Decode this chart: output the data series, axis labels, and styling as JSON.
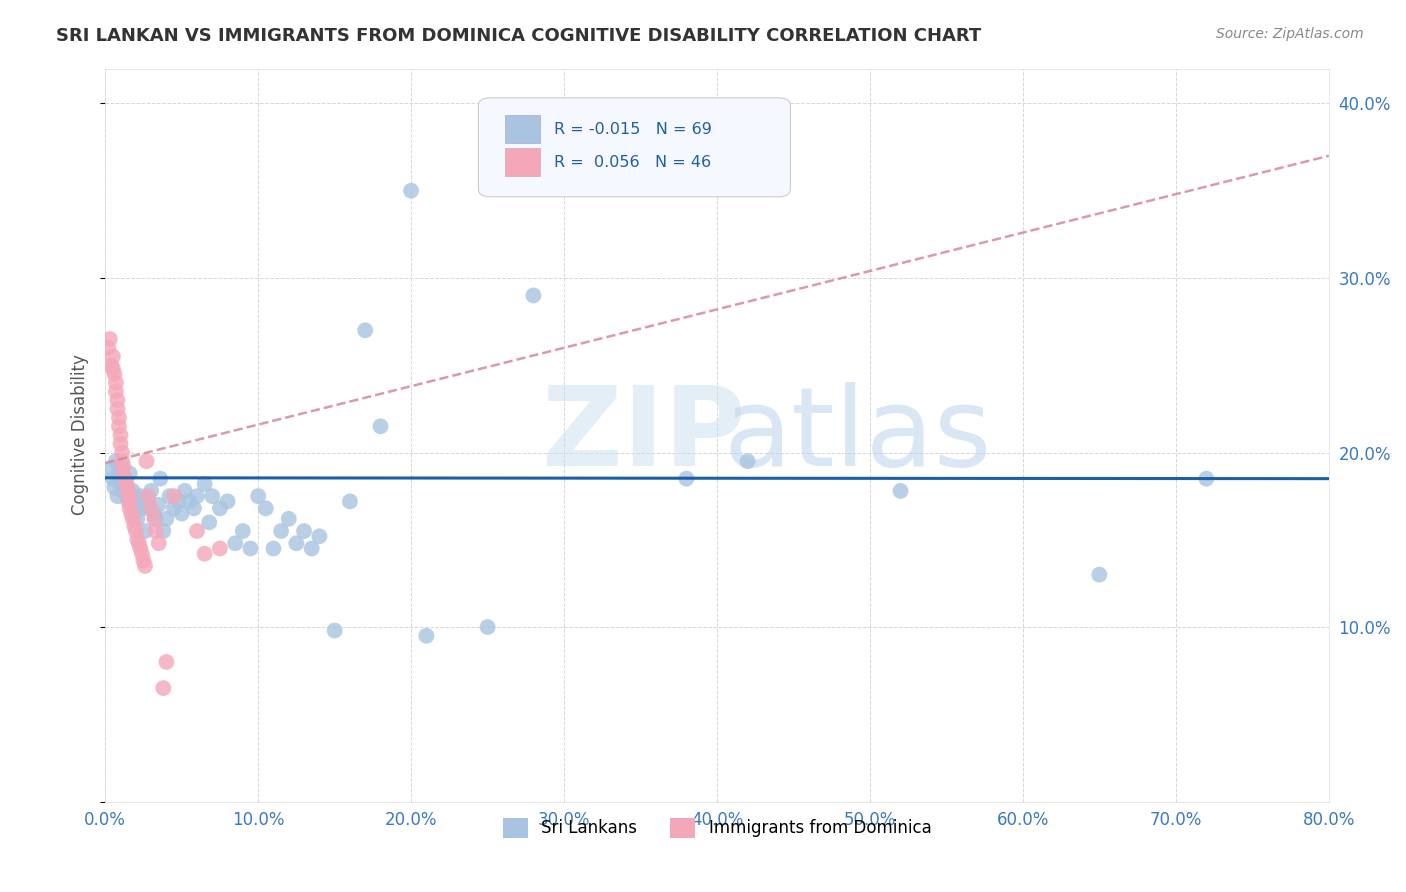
{
  "title": "SRI LANKAN VS IMMIGRANTS FROM DOMINICA COGNITIVE DISABILITY CORRELATION CHART",
  "source": "Source: ZipAtlas.com",
  "ylabel": "Cognitive Disability",
  "yticks": [
    0.0,
    0.1,
    0.2,
    0.3,
    0.4
  ],
  "ytick_labels": [
    "",
    "10.0%",
    "20.0%",
    "30.0%",
    "40.0%"
  ],
  "xticks": [
    0.0,
    0.1,
    0.2,
    0.3,
    0.4,
    0.5,
    0.6,
    0.7,
    0.8
  ],
  "xlim": [
    0.0,
    0.8
  ],
  "ylim": [
    0.0,
    0.42
  ],
  "legend_label1": "Sri Lankans",
  "legend_label2": "Immigrants from Dominica",
  "r1": "-0.015",
  "n1": "69",
  "r2": "0.056",
  "n2": "46",
  "color_blue": "#a8c4e0",
  "color_pink": "#f4a7b9",
  "line_blue": "#1a5fa8",
  "line_pink": "#d4889a",
  "background": "#ffffff",
  "grid_color": "#cccccc",
  "sri_lankans_x": [
    0.003,
    0.005,
    0.006,
    0.007,
    0.008,
    0.009,
    0.01,
    0.01,
    0.011,
    0.012,
    0.013,
    0.014,
    0.015,
    0.016,
    0.017,
    0.018,
    0.019,
    0.02,
    0.021,
    0.022,
    0.023,
    0.025,
    0.026,
    0.028,
    0.03,
    0.032,
    0.033,
    0.035,
    0.036,
    0.038,
    0.04,
    0.042,
    0.045,
    0.048,
    0.05,
    0.052,
    0.055,
    0.058,
    0.06,
    0.065,
    0.068,
    0.07,
    0.075,
    0.08,
    0.085,
    0.09,
    0.095,
    0.1,
    0.105,
    0.11,
    0.115,
    0.12,
    0.125,
    0.13,
    0.135,
    0.14,
    0.15,
    0.16,
    0.17,
    0.18,
    0.2,
    0.21,
    0.25,
    0.28,
    0.38,
    0.42,
    0.52,
    0.65,
    0.72
  ],
  "sri_lankans_y": [
    0.19,
    0.185,
    0.18,
    0.195,
    0.175,
    0.188,
    0.192,
    0.182,
    0.178,
    0.185,
    0.183,
    0.18,
    0.172,
    0.188,
    0.175,
    0.178,
    0.165,
    0.172,
    0.162,
    0.168,
    0.175,
    0.168,
    0.155,
    0.172,
    0.178,
    0.165,
    0.162,
    0.17,
    0.185,
    0.155,
    0.162,
    0.175,
    0.168,
    0.172,
    0.165,
    0.178,
    0.172,
    0.168,
    0.175,
    0.182,
    0.16,
    0.175,
    0.168,
    0.172,
    0.148,
    0.155,
    0.145,
    0.175,
    0.168,
    0.145,
    0.155,
    0.162,
    0.148,
    0.155,
    0.145,
    0.152,
    0.098,
    0.172,
    0.27,
    0.215,
    0.35,
    0.095,
    0.1,
    0.29,
    0.185,
    0.195,
    0.178,
    0.13,
    0.185
  ],
  "dominica_x": [
    0.002,
    0.003,
    0.004,
    0.005,
    0.005,
    0.006,
    0.007,
    0.007,
    0.008,
    0.008,
    0.009,
    0.009,
    0.01,
    0.01,
    0.011,
    0.011,
    0.012,
    0.012,
    0.013,
    0.014,
    0.015,
    0.015,
    0.016,
    0.016,
    0.017,
    0.018,
    0.019,
    0.02,
    0.021,
    0.022,
    0.023,
    0.024,
    0.025,
    0.026,
    0.027,
    0.028,
    0.03,
    0.032,
    0.033,
    0.035,
    0.038,
    0.04,
    0.045,
    0.06,
    0.065,
    0.075
  ],
  "dominica_y": [
    0.26,
    0.265,
    0.25,
    0.255,
    0.248,
    0.245,
    0.235,
    0.24,
    0.23,
    0.225,
    0.22,
    0.215,
    0.21,
    0.205,
    0.2,
    0.195,
    0.192,
    0.188,
    0.185,
    0.182,
    0.178,
    0.175,
    0.172,
    0.168,
    0.165,
    0.162,
    0.158,
    0.155,
    0.15,
    0.148,
    0.145,
    0.142,
    0.138,
    0.135,
    0.195,
    0.175,
    0.168,
    0.162,
    0.155,
    0.148,
    0.065,
    0.08,
    0.175,
    0.155,
    0.142,
    0.145
  ]
}
